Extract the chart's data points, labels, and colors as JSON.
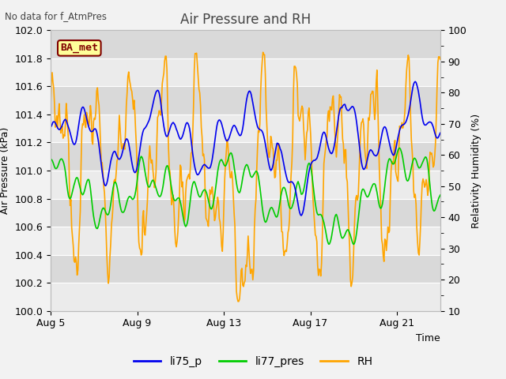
{
  "title": "Air Pressure and RH",
  "top_left_text": "No data for f_AtmPres",
  "box_label": "BA_met",
  "xlabel": "Time",
  "ylabel_left": "Air Pressure (kPa)",
  "ylabel_right": "Relativity Humidity (%)",
  "ylim_left": [
    100.0,
    102.0
  ],
  "ylim_right": [
    10,
    100
  ],
  "yticks_left": [
    100.0,
    100.2,
    100.4,
    100.6,
    100.8,
    101.0,
    101.2,
    101.4,
    101.6,
    101.8,
    102.0
  ],
  "yticks_right": [
    10,
    20,
    30,
    40,
    50,
    60,
    70,
    80,
    90,
    100
  ],
  "xtick_labels": [
    "Aug 5",
    "Aug 9",
    "Aug 13",
    "Aug 17",
    "Aug 21"
  ],
  "xtick_positions": [
    0,
    4,
    8,
    12,
    16
  ],
  "xlim": [
    0,
    18
  ],
  "legend_labels": [
    "li75_p",
    "li77_pres",
    "RH"
  ],
  "colors": {
    "li75_p": "#0000ee",
    "li77_pres": "#00cc00",
    "RH": "#ffa500"
  },
  "line_width": 1.2,
  "fig_facecolor": "#f0f0f0",
  "plot_bg_bands": [
    "#e8e8e8",
    "#d8d8d8"
  ],
  "grid_color": "#ffffff",
  "box_facecolor": "#ffff99",
  "box_edgecolor": "#800000",
  "box_text_color": "#800000",
  "title_fontsize": 12,
  "label_fontsize": 9,
  "tick_fontsize": 9
}
